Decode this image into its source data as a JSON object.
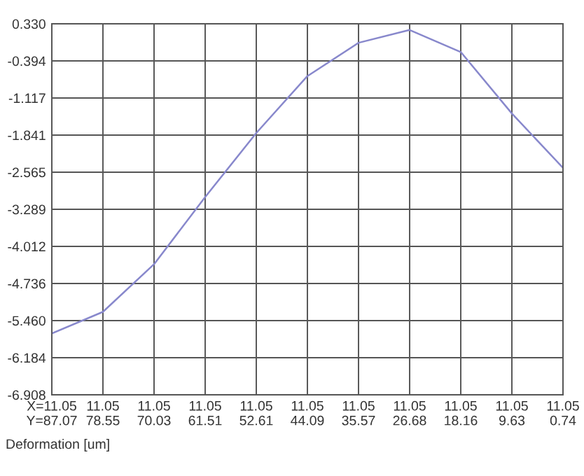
{
  "chart_data": {
    "type": "line",
    "categories": [
      "X=11.05\nY=87.07",
      "11.05\n78.55",
      "11.05\n70.03",
      "11.05\n61.51",
      "11.05\n52.61",
      "11.05\n44.09",
      "11.05\n35.57",
      "11.05\n26.68",
      "11.05\n18.16",
      "11.05\n9.63",
      "11.05\n0.74"
    ],
    "series": [
      {
        "color": "#8888cc",
        "values": [
          -5.71,
          -5.29,
          -4.36,
          -3.05,
          -1.8,
          -0.69,
          -0.04,
          0.21,
          -0.22,
          -1.42,
          -2.48
        ]
      }
    ],
    "ylim": [
      -6.908,
      0.33
    ],
    "yticks": [
      {
        "value": 0.33,
        "label": "0.330"
      },
      {
        "value": -0.394,
        "label": "-0.394"
      },
      {
        "value": -1.117,
        "label": "-1.117"
      },
      {
        "value": -1.841,
        "label": "-1.841"
      },
      {
        "value": -2.565,
        "label": "-2.565"
      },
      {
        "value": -3.289,
        "label": "-3.289"
      },
      {
        "value": -4.012,
        "label": "-4.012"
      },
      {
        "value": -4.736,
        "label": "-4.736"
      },
      {
        "value": -5.46,
        "label": "-5.460"
      },
      {
        "value": -6.184,
        "label": "-6.184"
      },
      {
        "value": -6.908,
        "label": "-6.908"
      }
    ],
    "grid": true,
    "line_style": "solid",
    "annotations": [
      "Deformation [um]"
    ]
  }
}
